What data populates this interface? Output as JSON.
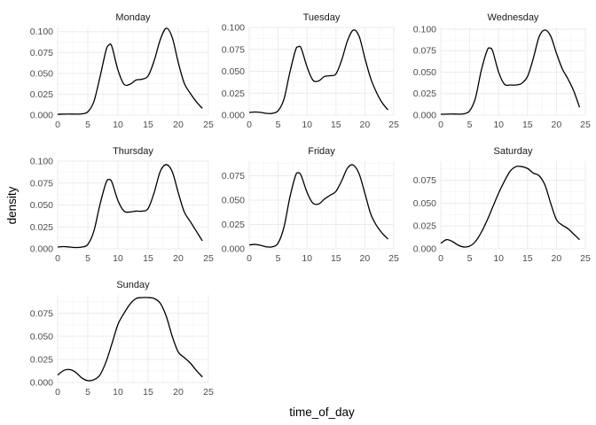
{
  "chart_data": {
    "type": "line",
    "chart_kind": "faceted density plot",
    "xlabel": "time_of_day",
    "ylabel": "density",
    "xlim": [
      0,
      25
    ],
    "x_ticks": [
      "0",
      "5",
      "10",
      "15",
      "20",
      "25"
    ],
    "grid": true,
    "line_color": "#000000",
    "grid_color": "#ebebeb",
    "facets": [
      {
        "title": "Monday",
        "ylim": [
          0,
          0.105
        ],
        "y_ticks": [
          "0.000",
          "0.025",
          "0.050",
          "0.075",
          "0.100"
        ],
        "y_tick_values": [
          0,
          0.025,
          0.05,
          0.075,
          0.1
        ],
        "x": [
          0,
          1,
          2,
          3,
          4,
          5,
          6,
          7,
          8,
          8.5,
          9,
          10,
          11,
          12,
          13,
          14,
          15,
          16,
          17,
          18,
          19,
          20,
          21,
          22,
          23,
          24
        ],
        "y": [
          0.001,
          0.0012,
          0.0013,
          0.0012,
          0.0015,
          0.004,
          0.016,
          0.045,
          0.077,
          0.084,
          0.082,
          0.054,
          0.037,
          0.037,
          0.042,
          0.043,
          0.047,
          0.065,
          0.09,
          0.104,
          0.093,
          0.063,
          0.038,
          0.026,
          0.016,
          0.008
        ]
      },
      {
        "title": "Tuesday",
        "ylim": [
          0,
          0.1
        ],
        "y_ticks": [
          "0.000",
          "0.025",
          "0.050",
          "0.075",
          "0.100"
        ],
        "y_tick_values": [
          0,
          0.025,
          0.05,
          0.075,
          0.1
        ],
        "x": [
          0,
          1,
          2,
          3,
          4,
          5,
          6,
          7,
          8,
          8.5,
          9,
          10,
          11,
          12,
          13,
          14,
          15,
          16,
          17,
          18,
          19,
          20,
          21,
          22,
          23,
          24
        ],
        "y": [
          0.003,
          0.0035,
          0.003,
          0.002,
          0.002,
          0.005,
          0.018,
          0.048,
          0.074,
          0.078,
          0.076,
          0.055,
          0.04,
          0.039,
          0.044,
          0.045,
          0.047,
          0.063,
          0.085,
          0.097,
          0.09,
          0.065,
          0.042,
          0.026,
          0.014,
          0.006
        ]
      },
      {
        "title": "Wednesday",
        "ylim": [
          0,
          0.102
        ],
        "y_ticks": [
          "0.000",
          "0.025",
          "0.050",
          "0.075",
          "0.100"
        ],
        "y_tick_values": [
          0,
          0.025,
          0.05,
          0.075,
          0.1
        ],
        "x": [
          0,
          1,
          2,
          3,
          4,
          5,
          6,
          7,
          8,
          8.5,
          9,
          10,
          11,
          12,
          13,
          14,
          15,
          16,
          17,
          18,
          19,
          20,
          21,
          22,
          23,
          24
        ],
        "y": [
          0.001,
          0.0012,
          0.0013,
          0.0012,
          0.0015,
          0.005,
          0.02,
          0.052,
          0.075,
          0.078,
          0.074,
          0.05,
          0.036,
          0.035,
          0.035,
          0.037,
          0.045,
          0.066,
          0.091,
          0.099,
          0.092,
          0.072,
          0.054,
          0.042,
          0.028,
          0.009
        ]
      },
      {
        "title": "Thursday",
        "ylim": [
          0,
          0.1
        ],
        "y_ticks": [
          "0.000",
          "0.025",
          "0.050",
          "0.075",
          "0.100"
        ],
        "y_tick_values": [
          0,
          0.025,
          0.05,
          0.075,
          0.1
        ],
        "x": [
          0,
          1,
          2,
          3,
          4,
          5,
          6,
          7,
          8,
          8.5,
          9,
          10,
          11,
          12,
          13,
          14,
          15,
          16,
          17,
          18,
          19,
          20,
          21,
          22,
          23,
          24
        ],
        "y": [
          0.002,
          0.0025,
          0.002,
          0.0015,
          0.002,
          0.005,
          0.02,
          0.05,
          0.075,
          0.079,
          0.076,
          0.055,
          0.043,
          0.042,
          0.043,
          0.043,
          0.046,
          0.064,
          0.088,
          0.096,
          0.088,
          0.064,
          0.042,
          0.031,
          0.02,
          0.009
        ]
      },
      {
        "title": "Friday",
        "ylim": [
          0,
          0.09
        ],
        "y_ticks": [
          "0.000",
          "0.025",
          "0.050",
          "0.075"
        ],
        "y_tick_values": [
          0,
          0.025,
          0.05,
          0.075
        ],
        "x": [
          0,
          1,
          2,
          3,
          4,
          5,
          6,
          7,
          8,
          8.5,
          9,
          10,
          11,
          12,
          13,
          14,
          15,
          16,
          17,
          18,
          19,
          20,
          21,
          22,
          23,
          24
        ],
        "y": [
          0.004,
          0.0045,
          0.0035,
          0.002,
          0.002,
          0.006,
          0.022,
          0.052,
          0.075,
          0.078,
          0.075,
          0.058,
          0.047,
          0.046,
          0.051,
          0.055,
          0.059,
          0.07,
          0.083,
          0.086,
          0.077,
          0.057,
          0.036,
          0.024,
          0.016,
          0.01
        ]
      },
      {
        "title": "Saturday",
        "ylim": [
          0,
          0.096
        ],
        "y_ticks": [
          "0.000",
          "0.025",
          "0.050",
          "0.075"
        ],
        "y_tick_values": [
          0,
          0.025,
          0.05,
          0.075
        ],
        "x": [
          0,
          1,
          2,
          3,
          4,
          5,
          6,
          7,
          8,
          9,
          10,
          11,
          12,
          13,
          14,
          15,
          16,
          17,
          18,
          19,
          20,
          21,
          22,
          23,
          24
        ],
        "y": [
          0.006,
          0.01,
          0.008,
          0.004,
          0.002,
          0.003,
          0.008,
          0.018,
          0.031,
          0.046,
          0.061,
          0.074,
          0.085,
          0.09,
          0.09,
          0.088,
          0.083,
          0.08,
          0.07,
          0.05,
          0.032,
          0.026,
          0.022,
          0.016,
          0.01
        ]
      },
      {
        "title": "Sunday",
        "ylim": [
          0,
          0.095
        ],
        "y_ticks": [
          "0.000",
          "0.025",
          "0.050",
          "0.075"
        ],
        "y_tick_values": [
          0,
          0.025,
          0.05,
          0.075
        ],
        "x": [
          0,
          1,
          2,
          3,
          4,
          5,
          6,
          7,
          8,
          9,
          10,
          11,
          12,
          13,
          14,
          15,
          16,
          17,
          18,
          19,
          20,
          21,
          22,
          23,
          24
        ],
        "y": [
          0.008,
          0.013,
          0.014,
          0.011,
          0.005,
          0.002,
          0.003,
          0.008,
          0.022,
          0.042,
          0.063,
          0.075,
          0.085,
          0.091,
          0.092,
          0.092,
          0.091,
          0.086,
          0.072,
          0.05,
          0.033,
          0.027,
          0.021,
          0.013,
          0.006
        ]
      }
    ]
  }
}
